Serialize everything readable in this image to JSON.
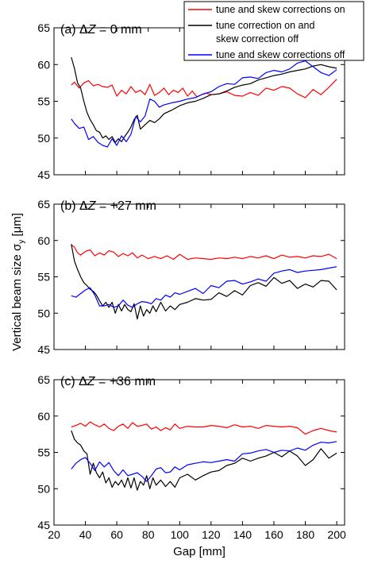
{
  "chart_data": {
    "type": "line",
    "xlabel": "Gap [mm]",
    "ylabel": "Vertical beam size σ_y [μm]",
    "ylabel_parts": {
      "main": "Vertical beam size σ",
      "sub": "y",
      "unit": " [μm]"
    },
    "xlim": [
      20,
      205
    ],
    "ylim": [
      45,
      65
    ],
    "xticks": [
      20,
      40,
      60,
      80,
      100,
      120,
      140,
      160,
      180,
      200
    ],
    "yticks": [
      45,
      50,
      55,
      60,
      65
    ],
    "grid": false,
    "legend": {
      "placement": "top-right",
      "entries": [
        {
          "lines": [
            "tune and skew corrections on"
          ],
          "color": "#ff0000"
        },
        {
          "lines": [
            "tune correction on and",
            "skew correction off"
          ],
          "color": "#000000"
        },
        {
          "lines": [
            "tune and skew corrections off"
          ],
          "color": "#0000ff"
        }
      ]
    },
    "panels": [
      {
        "title": "(a) ΔZ = 0 mm",
        "title_parts": {
          "prefix": "(a) Δ",
          "italic": "Z",
          "suffix": " = 0 mm"
        },
        "series": [
          {
            "color": "#ff0000",
            "x": [
              31,
              33,
              36,
              39,
              42,
              45,
              48,
              51,
              54,
              57,
              60,
              63,
              66,
              69,
              72,
              75,
              78,
              81,
              84,
              87,
              90,
              93,
              96,
              99,
              102,
              105,
              108,
              111,
              114,
              117,
              120,
              125,
              130,
              135,
              140,
              145,
              150,
              155,
              160,
              165,
              170,
              175,
              180,
              185,
              190,
              195,
              200
            ],
            "y": [
              57.2,
              57.6,
              56.8,
              57.5,
              57.8,
              57.1,
              57.3,
              57.0,
              56.9,
              57.2,
              55.7,
              56.5,
              56.0,
              57.0,
              56.2,
              56.5,
              55.9,
              57.3,
              55.8,
              56.2,
              56.8,
              55.9,
              56.5,
              56.2,
              56.8,
              55.7,
              56.4,
              55.6,
              55.9,
              56.1,
              55.9,
              56.0,
              56.3,
              55.8,
              55.7,
              56.2,
              55.8,
              56.8,
              56.5,
              57.0,
              56.8,
              56.0,
              55.5,
              56.6,
              55.9,
              56.9,
              58.0
            ]
          },
          {
            "color": "#000000",
            "x": [
              31,
              33,
              35,
              37,
              39,
              41,
              43,
              45,
              47,
              49,
              51,
              53,
              55,
              57,
              59,
              61,
              63,
              65,
              67,
              69,
              71,
              73,
              75,
              78,
              81,
              84,
              87,
              90,
              95,
              100,
              105,
              110,
              115,
              120,
              125,
              130,
              135,
              140,
              145,
              150,
              155,
              160,
              165,
              170,
              175,
              180,
              185,
              190,
              195,
              200
            ],
            "y": [
              61.0,
              59.5,
              57.5,
              56.8,
              55.0,
              53.5,
              52.5,
              51.8,
              51.0,
              50.8,
              50.0,
              50.3,
              49.8,
              50.2,
              49.4,
              49.9,
              49.5,
              50.2,
              50.8,
              51.5,
              52.5,
              53.1,
              51.2,
              51.8,
              52.4,
              52.1,
              52.6,
              53.3,
              53.8,
              54.4,
              54.8,
              55.0,
              55.4,
              55.9,
              56.0,
              56.4,
              56.9,
              57.2,
              57.4,
              57.9,
              58.2,
              58.5,
              58.7,
              59.0,
              59.2,
              59.4,
              59.8,
              60.0,
              59.7,
              59.5
            ]
          },
          {
            "color": "#0000ff",
            "x": [
              31,
              33,
              36,
              39,
              42,
              45,
              48,
              51,
              54,
              57,
              60,
              63,
              66,
              69,
              72,
              75,
              78,
              81,
              84,
              87,
              90,
              95,
              100,
              105,
              110,
              115,
              120,
              125,
              130,
              135,
              140,
              145,
              150,
              155,
              160,
              165,
              170,
              175,
              180,
              185,
              190,
              195,
              200
            ],
            "y": [
              52.6,
              52.0,
              51.3,
              51.5,
              49.8,
              50.2,
              49.4,
              49.0,
              48.8,
              49.9,
              49.0,
              50.3,
              49.5,
              50.5,
              52.9,
              52.2,
              53.0,
              55.3,
              55.0,
              54.2,
              54.5,
              54.8,
              55.0,
              55.3,
              55.5,
              56.0,
              56.3,
              57.0,
              57.4,
              57.3,
              58.2,
              58.3,
              58.1,
              58.9,
              59.2,
              59.0,
              59.4,
              60.2,
              60.5,
              59.7,
              58.9,
              58.5,
              59.3
            ]
          }
        ]
      },
      {
        "title": "(b) ΔZ = +27 mm",
        "title_parts": {
          "prefix": "(b) Δ",
          "italic": "Z",
          "suffix": " = +27 mm"
        },
        "series": [
          {
            "color": "#ff0000",
            "x": [
              31,
              33,
              35,
              37,
              40,
              43,
              46,
              49,
              52,
              55,
              58,
              61,
              64,
              67,
              70,
              73,
              76,
              80,
              84,
              88,
              92,
              96,
              100,
              105,
              110,
              115,
              120,
              125,
              130,
              135,
              140,
              145,
              150,
              155,
              160,
              165,
              170,
              175,
              180,
              185,
              190,
              195,
              200
            ],
            "y": [
              59.4,
              59.1,
              58.3,
              58.0,
              58.5,
              58.7,
              57.9,
              58.3,
              58.0,
              58.6,
              58.4,
              57.8,
              58.2,
              57.9,
              58.3,
              57.6,
              58.0,
              57.5,
              57.8,
              57.5,
              57.9,
              57.4,
              58.1,
              57.4,
              57.6,
              57.5,
              57.4,
              57.6,
              57.5,
              57.7,
              57.5,
              57.8,
              57.6,
              57.9,
              57.5,
              58.0,
              57.7,
              57.8,
              57.6,
              57.9,
              57.8,
              58.1,
              57.5
            ]
          },
          {
            "color": "#000000",
            "x": [
              31,
              33,
              35,
              37,
              39,
              41,
              43,
              45,
              47,
              49,
              51,
              53,
              55,
              57,
              59,
              61,
              63,
              65,
              67,
              69,
              71,
              73,
              75,
              77,
              79,
              81,
              83,
              85,
              88,
              91,
              94,
              97,
              100,
              105,
              110,
              115,
              120,
              125,
              130,
              135,
              140,
              145,
              150,
              155,
              160,
              165,
              170,
              175,
              180,
              185,
              190,
              195,
              200
            ],
            "y": [
              59.5,
              57.2,
              56.0,
              55.0,
              54.2,
              53.8,
              53.3,
              53.0,
              52.5,
              51.7,
              51.0,
              51.5,
              50.8,
              51.5,
              50.0,
              51.2,
              50.3,
              51.2,
              50.5,
              50.2,
              51.3,
              49.2,
              51.0,
              49.6,
              50.5,
              50.0,
              51.0,
              50.2,
              51.5,
              50.3,
              51.0,
              50.5,
              51.2,
              51.5,
              52.0,
              51.8,
              51.9,
              52.8,
              52.3,
              53.1,
              52.5,
              53.8,
              54.2,
              53.7,
              54.9,
              54.1,
              54.5,
              53.4,
              54.0,
              53.6,
              54.5,
              54.4,
              53.2
            ]
          },
          {
            "color": "#0000ff",
            "x": [
              31,
              34,
              37,
              40,
              43,
              46,
              49,
              52,
              55,
              58,
              61,
              64,
              67,
              70,
              73,
              76,
              79,
              82,
              85,
              88,
              91,
              94,
              97,
              100,
              105,
              110,
              115,
              120,
              125,
              130,
              135,
              140,
              145,
              150,
              155,
              160,
              165,
              170,
              175,
              180,
              185,
              190,
              195,
              200
            ],
            "y": [
              52.4,
              52.2,
              52.7,
              53.2,
              53.5,
              52.5,
              51.0,
              51.0,
              51.2,
              50.8,
              51.0,
              51.8,
              51.1,
              50.8,
              51.3,
              51.6,
              51.5,
              51.3,
              52.0,
              51.8,
              52.5,
              52.2,
              52.8,
              52.6,
              53.0,
              53.4,
              52.7,
              53.8,
              53.5,
              54.4,
              54.5,
              54.0,
              54.3,
              54.7,
              54.4,
              55.5,
              55.8,
              56.0,
              55.6,
              55.8,
              55.9,
              56.0,
              56.2,
              56.4
            ]
          }
        ]
      },
      {
        "title": "(c) ΔZ = +36 mm",
        "title_parts": {
          "prefix": "(c) Δ",
          "italic": "Z",
          "suffix": " = +36 mm"
        },
        "series": [
          {
            "color": "#ff0000",
            "x": [
              31,
              34,
              37,
              40,
              43,
              46,
              49,
              52,
              55,
              58,
              61,
              64,
              67,
              70,
              73,
              76,
              79,
              82,
              85,
              88,
              91,
              94,
              97,
              100,
              105,
              110,
              115,
              120,
              125,
              130,
              135,
              140,
              145,
              150,
              155,
              160,
              165,
              170,
              175,
              180,
              185,
              190,
              195,
              200
            ],
            "y": [
              58.5,
              58.7,
              59.0,
              58.6,
              59.2,
              58.8,
              58.5,
              58.9,
              58.3,
              58.0,
              58.6,
              58.9,
              58.3,
              59.1,
              58.6,
              58.7,
              58.9,
              58.2,
              58.5,
              58.0,
              58.4,
              58.1,
              58.9,
              58.3,
              58.6,
              58.5,
              58.5,
              58.7,
              58.6,
              58.4,
              58.8,
              58.5,
              58.6,
              58.3,
              58.7,
              58.6,
              58.5,
              58.6,
              58.4,
              57.5,
              58.0,
              58.3,
              58.0,
              57.8
            ]
          },
          {
            "color": "#000000",
            "x": [
              31,
              33,
              35,
              37,
              39,
              41,
              43,
              45,
              47,
              49,
              51,
              53,
              55,
              57,
              59,
              61,
              63,
              65,
              67,
              69,
              71,
              73,
              75,
              77,
              79,
              81,
              83,
              85,
              88,
              91,
              94,
              97,
              100,
              105,
              110,
              115,
              120,
              125,
              130,
              135,
              140,
              145,
              150,
              155,
              160,
              165,
              170,
              175,
              180,
              185,
              190,
              195,
              200
            ],
            "y": [
              58.0,
              56.8,
              56.3,
              56.0,
              55.2,
              54.8,
              52.0,
              53.5,
              52.2,
              51.5,
              52.3,
              50.8,
              51.5,
              50.2,
              51.0,
              50.5,
              51.2,
              50.2,
              51.5,
              50.1,
              51.5,
              49.8,
              51.0,
              50.5,
              51.8,
              50.0,
              51.5,
              50.5,
              51.2,
              50.3,
              51.0,
              50.2,
              51.5,
              52.0,
              51.2,
              51.8,
              52.3,
              52.5,
              53.2,
              53.5,
              54.2,
              53.8,
              54.2,
              54.5,
              55.0,
              54.4,
              55.2,
              54.5,
              53.2,
              54.0,
              55.5,
              54.2,
              54.9
            ]
          },
          {
            "color": "#0000ff",
            "x": [
              31,
              34,
              37,
              40,
              43,
              46,
              49,
              52,
              55,
              58,
              61,
              64,
              67,
              70,
              73,
              76,
              79,
              82,
              85,
              88,
              91,
              94,
              97,
              100,
              105,
              110,
              115,
              120,
              125,
              130,
              135,
              140,
              145,
              150,
              155,
              160,
              165,
              170,
              175,
              180,
              185,
              190,
              195,
              200
            ],
            "y": [
              52.7,
              53.5,
              54.0,
              54.3,
              53.5,
              52.5,
              53.7,
              53.0,
              53.6,
              52.5,
              51.8,
              52.6,
              51.8,
              52.0,
              52.2,
              51.7,
              51.0,
              51.8,
              52.7,
              52.9,
              52.2,
              52.3,
              53.0,
              52.6,
              53.3,
              53.5,
              53.7,
              53.6,
              53.8,
              54.0,
              53.8,
              54.8,
              54.9,
              55.2,
              55.4,
              55.0,
              55.3,
              55.2,
              55.6,
              55.3,
              56.0,
              56.4,
              56.3,
              56.5
            ]
          }
        ]
      }
    ]
  }
}
